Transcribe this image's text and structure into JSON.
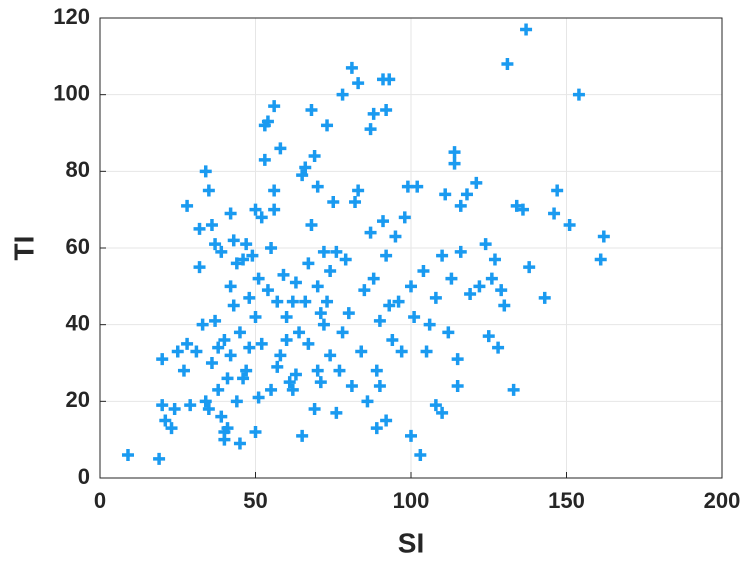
{
  "chart_data": {
    "type": "scatter",
    "x_label": "SI",
    "y_label": "TI",
    "color": "#1a9af0",
    "grid": true,
    "xlim": [
      0,
      200
    ],
    "xticks": [
      0,
      50,
      100,
      150,
      200
    ],
    "ylim": [
      0,
      120
    ],
    "yticks": [
      0,
      20,
      40,
      60,
      80,
      100,
      120
    ],
    "x": [
      9,
      19,
      20,
      20,
      21,
      23,
      24,
      25,
      27,
      28,
      28,
      29,
      31,
      32,
      32,
      33,
      34,
      34,
      35,
      35,
      36,
      36,
      37,
      37,
      38,
      38,
      39,
      39,
      40,
      40,
      40,
      41,
      41,
      42,
      42,
      42,
      43,
      43,
      44,
      44,
      45,
      45,
      46,
      46,
      47,
      47,
      48,
      48,
      49,
      50,
      50,
      50,
      51,
      51,
      52,
      52,
      53,
      53,
      54,
      54,
      55,
      55,
      56,
      56,
      56,
      57,
      57,
      58,
      58,
      59,
      60,
      60,
      61,
      62,
      62,
      63,
      63,
      64,
      65,
      65,
      66,
      66,
      67,
      67,
      68,
      68,
      69,
      69,
      70,
      70,
      70,
      71,
      71,
      72,
      72,
      73,
      73,
      74,
      74,
      75,
      76,
      76,
      77,
      78,
      78,
      79,
      80,
      81,
      81,
      82,
      83,
      83,
      84,
      85,
      86,
      87,
      87,
      88,
      88,
      89,
      89,
      90,
      90,
      91,
      91,
      92,
      92,
      92,
      93,
      93,
      94,
      95,
      96,
      97,
      98,
      99,
      100,
      100,
      101,
      102,
      103,
      104,
      105,
      106,
      108,
      108,
      110,
      110,
      111,
      112,
      113,
      114,
      114,
      115,
      115,
      116,
      116,
      118,
      119,
      121,
      122,
      124,
      125,
      126,
      127,
      128,
      129,
      130,
      131,
      133,
      134,
      136,
      137,
      138,
      143,
      146,
      147,
      151,
      154,
      161,
      162
    ],
    "values": [
      6,
      5,
      31,
      19,
      15,
      13,
      18,
      33,
      28,
      71,
      35,
      19,
      33,
      55,
      65,
      40,
      80,
      20,
      75,
      18,
      66,
      30,
      61,
      41,
      34,
      23,
      59,
      16,
      10,
      36,
      12,
      26,
      13,
      69,
      50,
      32,
      62,
      45,
      56,
      20,
      9,
      38,
      57,
      26,
      61,
      28,
      34,
      47,
      58,
      42,
      70,
      12,
      21,
      52,
      35,
      68,
      92,
      83,
      93,
      49,
      60,
      23,
      97,
      75,
      70,
      46,
      29,
      86,
      32,
      53,
      42,
      36,
      25,
      46,
      23,
      51,
      27,
      38,
      79,
      11,
      81,
      46,
      56,
      35,
      66,
      96,
      84,
      18,
      76,
      50,
      28,
      43,
      25,
      40,
      59,
      92,
      46,
      54,
      32,
      72,
      17,
      59,
      28,
      100,
      38,
      57,
      43,
      107,
      24,
      72,
      75,
      103,
      33,
      49,
      20,
      91,
      64,
      52,
      95,
      28,
      13,
      41,
      24,
      104,
      67,
      15,
      96,
      58,
      104,
      45,
      36,
      63,
      46,
      33,
      68,
      76,
      50,
      11,
      42,
      76,
      6,
      54,
      33,
      40,
      19,
      47,
      17,
      58,
      74,
      38,
      52,
      85,
      82,
      31,
      24,
      71,
      59,
      74,
      48,
      77,
      50,
      61,
      37,
      52,
      57,
      34,
      49,
      45,
      108,
      23,
      71,
      70,
      117,
      55,
      47,
      69,
      75,
      66,
      100,
      57,
      63
    ]
  }
}
